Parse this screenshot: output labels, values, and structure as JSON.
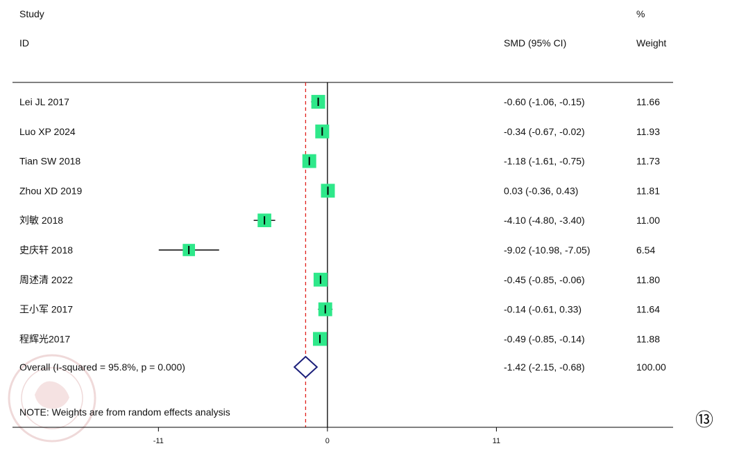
{
  "figure_badge": "⑬",
  "chart_data": {
    "type": "forest",
    "header": {
      "study_line1": "Study",
      "study_line2": "ID",
      "effect_label": "SMD (95% CI)",
      "weight_line1": "%",
      "weight_line2": "Weight"
    },
    "studies": [
      {
        "name": "Lei JL 2017",
        "smd": -0.6,
        "lo": -1.06,
        "hi": -0.15,
        "ci_text": "-0.60 (-1.06, -0.15)",
        "weight": 11.66,
        "weight_text": "11.66"
      },
      {
        "name": "Luo XP 2024",
        "smd": -0.34,
        "lo": -0.67,
        "hi": -0.02,
        "ci_text": "-0.34 (-0.67, -0.02)",
        "weight": 11.93,
        "weight_text": "11.93"
      },
      {
        "name": "Tian SW 2018",
        "smd": -1.18,
        "lo": -1.61,
        "hi": -0.75,
        "ci_text": "-1.18 (-1.61, -0.75)",
        "weight": 11.73,
        "weight_text": "11.73"
      },
      {
        "name": "Zhou XD 2019",
        "smd": 0.03,
        "lo": -0.36,
        "hi": 0.43,
        "ci_text": "0.03 (-0.36, 0.43)",
        "weight": 11.81,
        "weight_text": "11.81"
      },
      {
        "name": "刘敏 2018",
        "smd": -4.1,
        "lo": -4.8,
        "hi": -3.4,
        "ci_text": "-4.10 (-4.80, -3.40)",
        "weight": 11.0,
        "weight_text": "11.00"
      },
      {
        "name": "史庆轩 2018",
        "smd": -9.02,
        "lo": -10.98,
        "hi": -7.05,
        "ci_text": "-9.02 (-10.98, -7.05)",
        "weight": 6.54,
        "weight_text": "6.54"
      },
      {
        "name": "周述清 2022",
        "smd": -0.45,
        "lo": -0.85,
        "hi": -0.06,
        "ci_text": "-0.45 (-0.85, -0.06)",
        "weight": 11.8,
        "weight_text": "11.80"
      },
      {
        "name": "王小军 2017",
        "smd": -0.14,
        "lo": -0.61,
        "hi": 0.33,
        "ci_text": "-0.14 (-0.61, 0.33)",
        "weight": 11.64,
        "weight_text": "11.64"
      },
      {
        "name": "程辉光2017",
        "smd": -0.49,
        "lo": -0.85,
        "hi": -0.14,
        "ci_text": "-0.49 (-0.85, -0.14)",
        "weight": 11.88,
        "weight_text": "11.88"
      }
    ],
    "overall": {
      "label": "Overall  (I-squared = 95.8%, p = 0.000)",
      "smd": -1.42,
      "lo": -2.15,
      "hi": -0.68,
      "ci_text": "-1.42 (-2.15, -0.68)",
      "weight_text": "100.00"
    },
    "note": "NOTE: Weights are from random effects analysis",
    "x_ticks": [
      -11,
      0,
      11
    ],
    "x_tick_labels": [
      "-11",
      "0",
      "11"
    ],
    "xlim": [
      -20.5,
      22.5
    ],
    "null_line": 0,
    "colors": {
      "box": "#2ee88a",
      "ci_line": "#000000",
      "overall_diamond": "#1b1f7a",
      "overall_line": "#e0201c"
    }
  }
}
